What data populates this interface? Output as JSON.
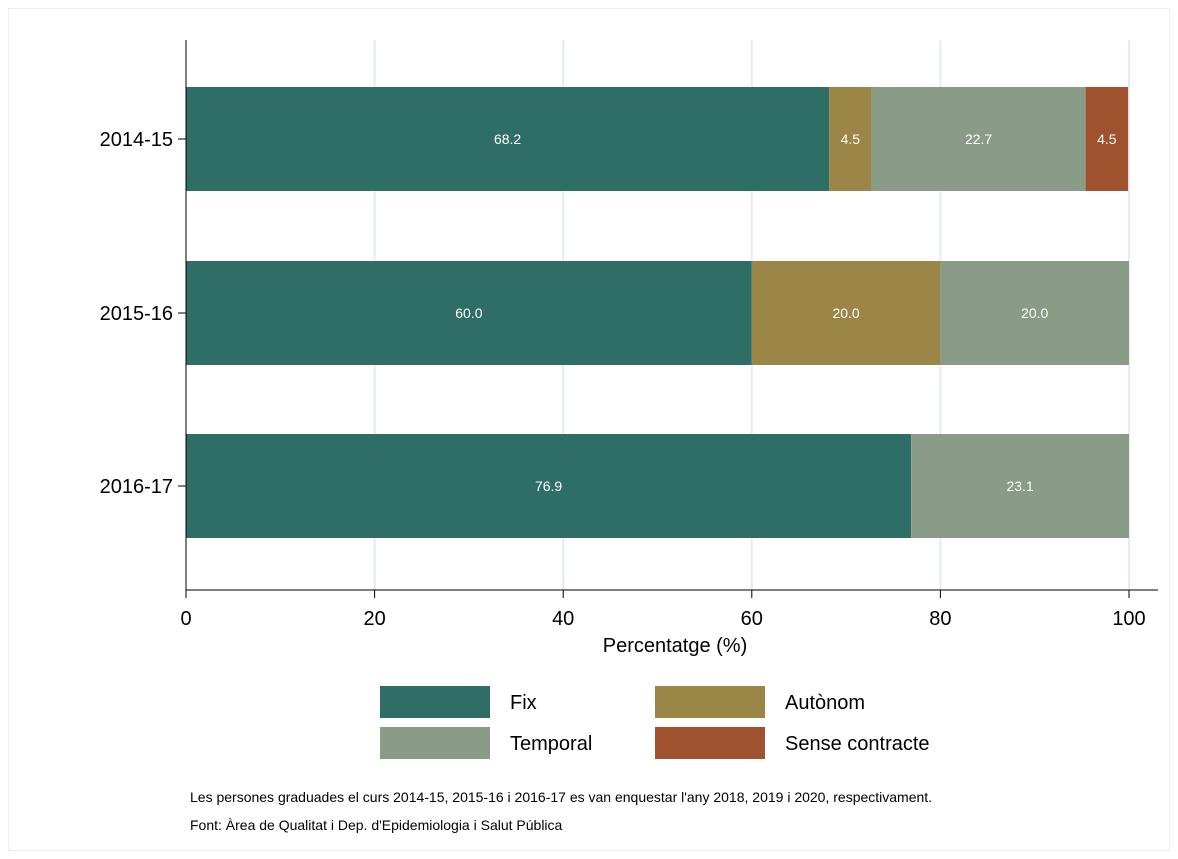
{
  "chart_data": {
    "type": "bar",
    "orientation": "horizontal",
    "stacked": true,
    "categories": [
      "2014-15",
      "2015-16",
      "2016-17"
    ],
    "series": [
      {
        "name": "Fix",
        "color": "#2e6e66",
        "values": [
          68.2,
          60.0,
          76.9
        ]
      },
      {
        "name": "Autònom",
        "color": "#9b8547",
        "values": [
          4.5,
          20.0,
          0
        ]
      },
      {
        "name": "Temporal",
        "color": "#8a9c87",
        "values": [
          22.7,
          20.0,
          23.1
        ]
      },
      {
        "name": "Sense contracte",
        "color": "#a0512d",
        "values": [
          4.5,
          0,
          0
        ]
      }
    ],
    "xlabel": "Percentatge (%)",
    "ylabel": "",
    "xlim": [
      0,
      100
    ],
    "xticks": [
      0,
      20,
      40,
      60,
      80,
      100
    ],
    "grid": true,
    "legend_position": "bottom"
  },
  "notes": [
    "Les persones graduades el curs 2014-15, 2015-16 i 2016-17 es van enquestar l'any 2018, 2019 i 2020, respectivament.",
    "Font: Àrea de Qualitat i Dep. d'Epidemiologia i Salut Pública"
  ]
}
